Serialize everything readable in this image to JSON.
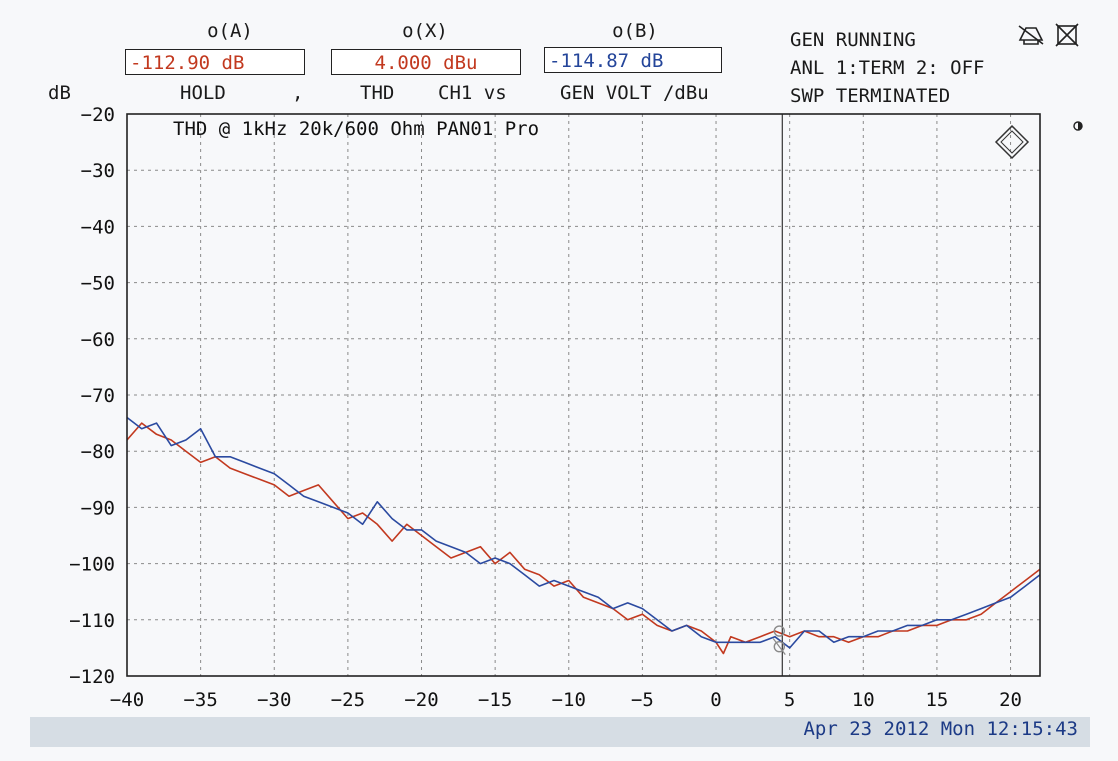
{
  "header": {
    "marker_a": "o(A)",
    "marker_x": "o(X)",
    "marker_b": "o(B)",
    "value_a": "-112.90 dB",
    "value_x": "4.000 dBu",
    "value_b": "-114.87 dB",
    "unit_left": "dB",
    "label_hold": "HOLD",
    "label_comma": ",",
    "label_thd": "THD",
    "label_ch1vs": "CH1 vs",
    "label_genvolt": "GEN VOLT /dBu"
  },
  "status": {
    "line1": "GEN RUNNING",
    "line2": "ANL 1:TERM 2: OFF",
    "line3": "SWP TERMINATED"
  },
  "footer": {
    "timestamp": "Apr 23 2012 Mon 12:15:43"
  },
  "colors": {
    "red_trace": "#c2391f",
    "blue_trace": "#2b4aa0",
    "value_a": "#c2391f",
    "value_x": "#c2391f",
    "value_b": "#24459a",
    "timestamp": "#1c3a86"
  },
  "chart_data": {
    "type": "line",
    "title": "THD @ 1kHz 20k/600 Ohm PAN01 Pro",
    "xlabel": "",
    "ylabel": "dB",
    "xlim": [
      -40,
      22
    ],
    "ylim": [
      -120,
      -20
    ],
    "xticks": [
      -40,
      -35,
      -30,
      -25,
      -20,
      -15,
      -10,
      -5,
      0,
      5,
      10,
      15,
      20
    ],
    "yticks": [
      -20,
      -30,
      -40,
      -50,
      -60,
      -70,
      -80,
      -90,
      -100,
      -110,
      -120
    ],
    "grid": true,
    "cursor_x": 4.5,
    "series": [
      {
        "color": "#c2391f",
        "x": [
          -40,
          -39,
          -38,
          -37,
          -36,
          -35,
          -34,
          -33,
          -32,
          -31,
          -30,
          -29,
          -28,
          -27,
          -26,
          -25,
          -24,
          -23,
          -22,
          -21,
          -20,
          -19,
          -18,
          -17,
          -16,
          -15,
          -14,
          -13,
          -12,
          -11,
          -10,
          -9,
          -8,
          -7,
          -6,
          -5,
          -4,
          -3,
          -2,
          -1,
          0,
          0.5,
          1,
          2,
          3,
          4,
          5,
          6,
          7,
          8,
          9,
          10,
          11,
          12,
          13,
          14,
          15,
          16,
          17,
          18,
          19,
          20,
          21,
          22
        ],
        "values": [
          -78,
          -75,
          -77,
          -78,
          -80,
          -82,
          -81,
          -83,
          -84,
          -85,
          -86,
          -88,
          -87,
          -86,
          -89,
          -92,
          -91,
          -93,
          -96,
          -93,
          -95,
          -97,
          -99,
          -98,
          -97,
          -100,
          -98,
          -101,
          -102,
          -104,
          -103,
          -106,
          -107,
          -108,
          -110,
          -109,
          -111,
          -112,
          -111,
          -112,
          -114,
          -116,
          -113,
          -114,
          -113,
          -112,
          -113,
          -112,
          -113,
          -113,
          -114,
          -113,
          -113,
          -112,
          -112,
          -111,
          -111,
          -110,
          -110,
          -109,
          -107,
          -105,
          -103,
          -101
        ]
      },
      {
        "color": "#2b4aa0",
        "x": [
          -40,
          -39,
          -38,
          -37,
          -36,
          -35,
          -34,
          -33,
          -32,
          -31,
          -30,
          -29,
          -28,
          -27,
          -26,
          -25,
          -24,
          -23,
          -22,
          -21,
          -20,
          -19,
          -18,
          -17,
          -16,
          -15,
          -14,
          -13,
          -12,
          -11,
          -10,
          -9,
          -8,
          -7,
          -6,
          -5,
          -4,
          -3,
          -2,
          -1,
          0,
          1,
          2,
          3,
          4,
          5,
          6,
          7,
          8,
          9,
          10,
          11,
          12,
          13,
          14,
          15,
          16,
          17,
          18,
          19,
          20,
          21,
          22
        ],
        "values": [
          -74,
          -76,
          -75,
          -79,
          -78,
          -76,
          -81,
          -81,
          -82,
          -83,
          -84,
          -86,
          -88,
          -89,
          -90,
          -91,
          -93,
          -89,
          -92,
          -94,
          -94,
          -96,
          -97,
          -98,
          -100,
          -99,
          -100,
          -102,
          -104,
          -103,
          -104,
          -105,
          -106,
          -108,
          -107,
          -108,
          -110,
          -112,
          -111,
          -113,
          -114,
          -114,
          -114,
          -114,
          -113,
          -115,
          -112,
          -112,
          -114,
          -113,
          -113,
          -112,
          -112,
          -111,
          -111,
          -110,
          -110,
          -109,
          -108,
          -107,
          -106,
          -104,
          -102
        ]
      }
    ]
  }
}
